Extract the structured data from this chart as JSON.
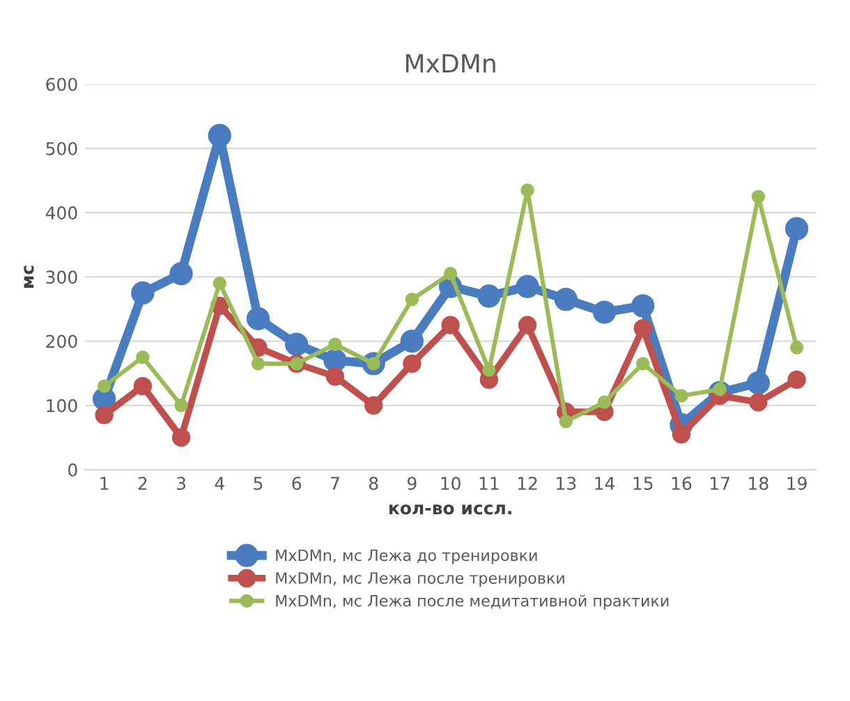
{
  "chart_data": {
    "type": "line",
    "title": "MxDMn",
    "xlabel": "кол-во иссл.",
    "ylabel": "мс",
    "categories": [
      "1",
      "2",
      "3",
      "4",
      "5",
      "6",
      "7",
      "8",
      "9",
      "10",
      "11",
      "12",
      "13",
      "14",
      "15",
      "16",
      "17",
      "18",
      "19"
    ],
    "series": [
      {
        "name": "MxDMn, мс Лежа до тренировки",
        "color": "#4a7cc0",
        "values": [
          110,
          275,
          305,
          520,
          235,
          195,
          170,
          165,
          200,
          285,
          270,
          285,
          265,
          245,
          255,
          70,
          120,
          135,
          375
        ]
      },
      {
        "name": "MxDMn, мс Лежа после тренировки",
        "color": "#c0504d",
        "values": [
          85,
          130,
          50,
          255,
          190,
          165,
          145,
          100,
          165,
          225,
          140,
          225,
          90,
          90,
          220,
          55,
          115,
          105,
          140
        ]
      },
      {
        "name": "MxDMn, мс Лежа после медитативной практики",
        "color": "#9bbb59",
        "values": [
          130,
          175,
          100,
          290,
          165,
          165,
          195,
          165,
          265,
          305,
          155,
          435,
          75,
          105,
          165,
          115,
          125,
          425,
          190
        ]
      }
    ],
    "ylim": [
      0,
      600
    ],
    "yticks": [
      0,
      100,
      200,
      300,
      400,
      500,
      600
    ],
    "grid": "y",
    "legend": "bottom",
    "marker": "circle",
    "line_style": "solid"
  }
}
